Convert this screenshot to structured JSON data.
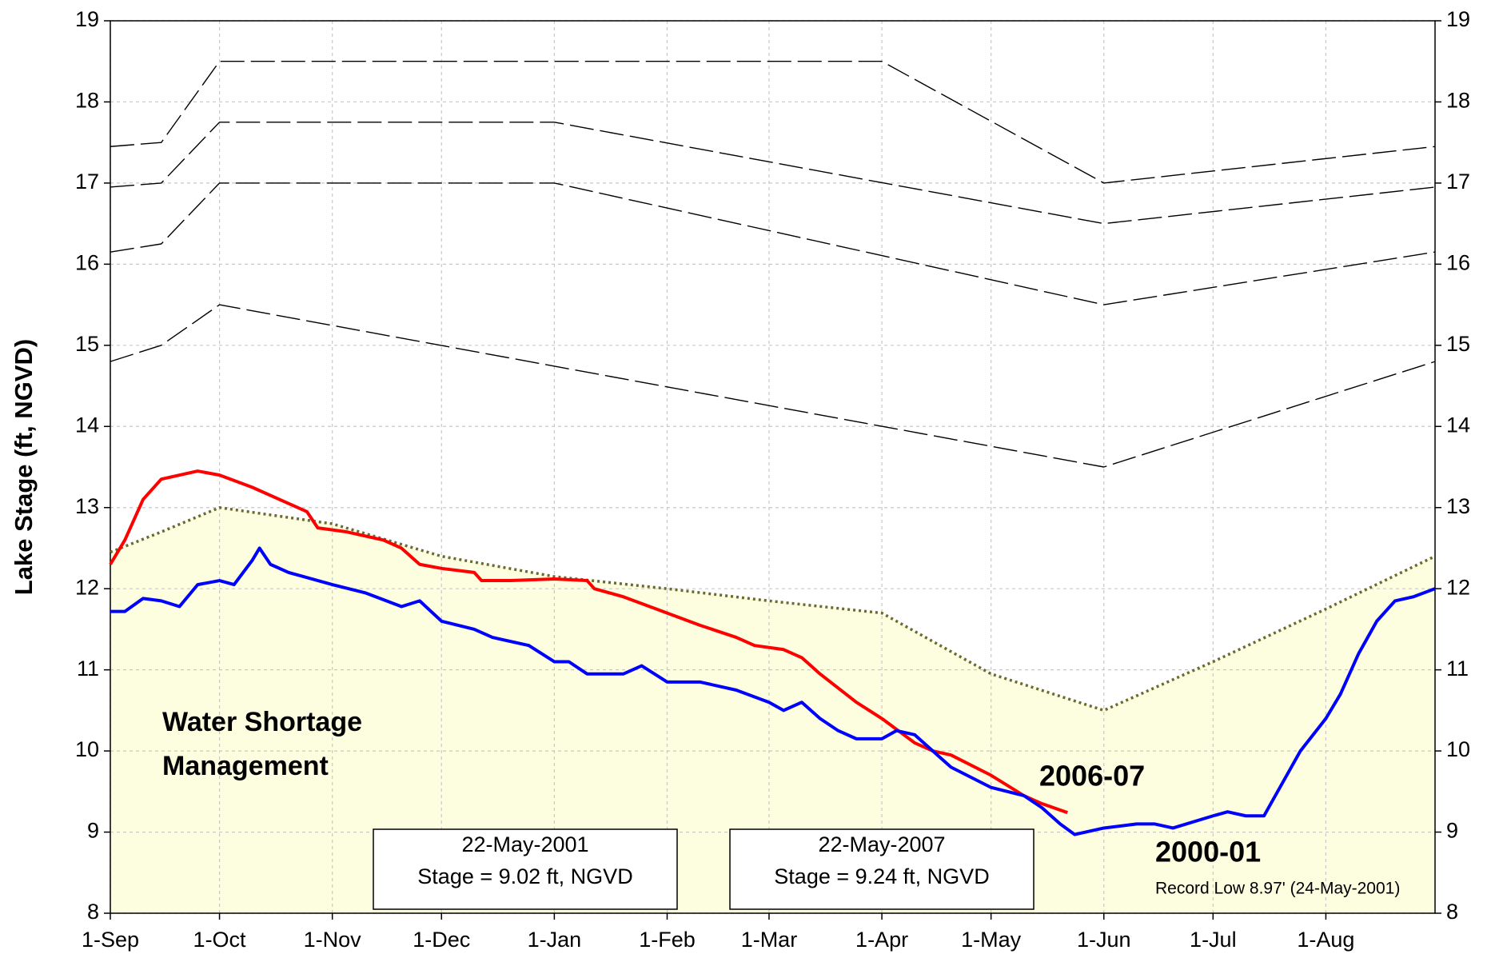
{
  "chart_data": {
    "type": "line",
    "ylabel": "Lake Stage (ft, NGVD)",
    "xlim": [
      "1-Sep",
      "31-Aug"
    ],
    "xticks": [
      "1-Sep",
      "1-Oct",
      "1-Nov",
      "1-Dec",
      "1-Jan",
      "1-Feb",
      "1-Mar",
      "1-Apr",
      "1-May",
      "1-Jun",
      "1-Jul",
      "1-Aug"
    ],
    "ylim": [
      8,
      19
    ],
    "yticks": [
      8,
      9,
      10,
      11,
      12,
      13,
      14,
      15,
      16,
      17,
      18,
      19
    ],
    "y2lim": [
      8,
      19
    ],
    "y2ticks": [
      8,
      9,
      10,
      11,
      12,
      13,
      14,
      15,
      16,
      17,
      18,
      19
    ],
    "grid": true,
    "area_fill": "#fdfde0",
    "series": [
      {
        "color": "#000000",
        "style": "dashed",
        "x": [
          "1-Sep",
          "15-Sep",
          "1-Oct",
          "1-Apr",
          "1-Jun",
          "31-Aug"
        ],
        "values": [
          17.45,
          17.5,
          18.5,
          18.5,
          17.0,
          17.45
        ]
      },
      {
        "color": "#000000",
        "style": "dashed",
        "x": [
          "1-Sep",
          "15-Sep",
          "1-Oct",
          "1-Jan",
          "1-Jun",
          "31-Aug"
        ],
        "values": [
          16.95,
          17.0,
          17.75,
          17.75,
          16.5,
          16.95
        ]
      },
      {
        "color": "#000000",
        "style": "dashed",
        "x": [
          "1-Sep",
          "15-Sep",
          "1-Oct",
          "1-Jan",
          "1-Jun",
          "31-Aug"
        ],
        "values": [
          16.15,
          16.25,
          17.0,
          17.0,
          15.5,
          16.15
        ]
      },
      {
        "color": "#000000",
        "style": "dashed",
        "x": [
          "1-Sep",
          "15-Sep",
          "1-Oct",
          "1-Jun",
          "31-Aug"
        ],
        "values": [
          14.8,
          15.0,
          15.5,
          13.5,
          14.8
        ]
      },
      {
        "color": "#6b6b2e",
        "style": "dotted",
        "fill_below": true,
        "x": [
          "1-Sep",
          "15-Sep",
          "1-Oct",
          "1-Nov",
          "1-Dec",
          "1-Jan",
          "1-Feb",
          "1-Mar",
          "1-Apr",
          "1-May",
          "1-Jun",
          "1-Jul",
          "1-Aug",
          "31-Aug"
        ],
        "values": [
          12.45,
          12.7,
          13.0,
          12.8,
          12.4,
          12.15,
          12.0,
          11.85,
          11.7,
          10.95,
          10.5,
          11.1,
          11.75,
          12.4
        ]
      },
      {
        "name": "2006-07",
        "color": "#ff0000",
        "style": "solid",
        "x": [
          "1-Sep",
          "5-Sep",
          "10-Sep",
          "15-Sep",
          "25-Sep",
          "1-Oct",
          "10-Oct",
          "20-Oct",
          "25-Oct",
          "28-Oct",
          "5-Nov",
          "15-Nov",
          "20-Nov",
          "25-Nov",
          "1-Dec",
          "10-Dec",
          "12-Dec",
          "20-Dec",
          "1-Jan",
          "10-Jan",
          "12-Jan",
          "20-Jan",
          "1-Feb",
          "10-Feb",
          "20-Feb",
          "25-Feb",
          "5-Mar",
          "10-Mar",
          "15-Mar",
          "25-Mar",
          "1-Apr",
          "10-Apr",
          "15-Apr",
          "20-Apr",
          "1-May",
          "10-May",
          "15-May",
          "22-May"
        ],
        "values": [
          12.3,
          12.6,
          13.1,
          13.35,
          13.45,
          13.4,
          13.25,
          13.05,
          12.95,
          12.75,
          12.7,
          12.6,
          12.5,
          12.3,
          12.25,
          12.2,
          12.1,
          12.1,
          12.12,
          12.1,
          12.0,
          11.9,
          11.7,
          11.55,
          11.4,
          11.3,
          11.25,
          11.15,
          10.95,
          10.6,
          10.4,
          10.1,
          10.0,
          9.95,
          9.7,
          9.45,
          9.35,
          9.24
        ]
      },
      {
        "name": "2000-01",
        "color": "#0000ff",
        "style": "solid",
        "x": [
          "1-Sep",
          "5-Sep",
          "10-Sep",
          "15-Sep",
          "20-Sep",
          "25-Sep",
          "1-Oct",
          "5-Oct",
          "10-Oct",
          "12-Oct",
          "15-Oct",
          "20-Oct",
          "1-Nov",
          "10-Nov",
          "20-Nov",
          "25-Nov",
          "1-Dec",
          "10-Dec",
          "15-Dec",
          "25-Dec",
          "1-Jan",
          "5-Jan",
          "10-Jan",
          "20-Jan",
          "25-Jan",
          "1-Feb",
          "10-Feb",
          "20-Feb",
          "1-Mar",
          "5-Mar",
          "10-Mar",
          "15-Mar",
          "20-Mar",
          "25-Mar",
          "1-Apr",
          "5-Apr",
          "10-Apr",
          "15-Apr",
          "20-Apr",
          "1-May",
          "10-May",
          "15-May",
          "20-May",
          "24-May",
          "1-Jun",
          "10-Jun",
          "15-Jun",
          "20-Jun",
          "1-Jul",
          "5-Jul",
          "10-Jul",
          "15-Jul",
          "20-Jul",
          "25-Jul",
          "1-Aug",
          "5-Aug",
          "10-Aug",
          "15-Aug",
          "20-Aug",
          "25-Aug",
          "31-Aug"
        ],
        "values": [
          11.72,
          11.72,
          11.88,
          11.85,
          11.78,
          12.05,
          12.1,
          12.05,
          12.35,
          12.5,
          12.3,
          12.2,
          12.05,
          11.95,
          11.78,
          11.85,
          11.6,
          11.5,
          11.4,
          11.3,
          11.1,
          11.1,
          10.95,
          10.95,
          11.05,
          10.85,
          10.85,
          10.75,
          10.6,
          10.5,
          10.6,
          10.4,
          10.25,
          10.15,
          10.15,
          10.25,
          10.2,
          10.0,
          9.8,
          9.55,
          9.45,
          9.3,
          9.1,
          8.97,
          9.05,
          9.1,
          9.1,
          9.05,
          9.2,
          9.25,
          9.2,
          9.2,
          9.6,
          10.0,
          10.4,
          10.7,
          11.2,
          11.6,
          11.85,
          11.9,
          12.0
        ]
      }
    ],
    "annotations": {
      "zone": [
        "Water Shortage Management"
      ],
      "record_low": "Record Low 8.97' (24-May-2001)",
      "box_2001": [
        "22-May-2001",
        "Stage = 9.02 ft, NGVD"
      ],
      "box_2007": [
        "22-May-2007",
        "Stage = 9.24 ft, NGVD"
      ]
    }
  }
}
